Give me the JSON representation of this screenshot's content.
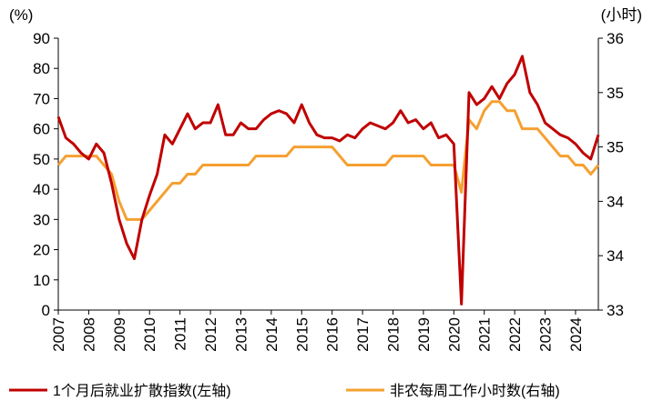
{
  "chart_data": {
    "type": "line",
    "y_unit": "(%)",
    "y2_unit": "(小时)",
    "x": [
      2007,
      2007.25,
      2007.5,
      2007.75,
      2008,
      2008.25,
      2008.5,
      2008.75,
      2009,
      2009.25,
      2009.5,
      2009.75,
      2010,
      2010.25,
      2010.5,
      2010.75,
      2011,
      2011.25,
      2011.5,
      2011.75,
      2012,
      2012.25,
      2012.5,
      2012.75,
      2013,
      2013.25,
      2013.5,
      2013.75,
      2014,
      2014.25,
      2014.5,
      2014.75,
      2015,
      2015.25,
      2015.5,
      2015.75,
      2016,
      2016.25,
      2016.5,
      2016.75,
      2017,
      2017.25,
      2017.5,
      2017.75,
      2018,
      2018.25,
      2018.5,
      2018.75,
      2019,
      2019.25,
      2019.5,
      2019.75,
      2020,
      2020.25,
      2020.5,
      2020.75,
      2021,
      2021.25,
      2021.5,
      2021.75,
      2022,
      2022.25,
      2022.5,
      2022.75,
      2023,
      2023.25,
      2023.5,
      2023.75,
      2024,
      2024.25,
      2024.5,
      2024.75
    ],
    "series": [
      {
        "name": "1个月后就业扩散指数(左轴)",
        "color": "#c00000",
        "axis": "y",
        "values": [
          64,
          57,
          55,
          52,
          50,
          55,
          52,
          42,
          30,
          22,
          17,
          30,
          38,
          45,
          58,
          55,
          60,
          65,
          60,
          62,
          62,
          68,
          58,
          58,
          62,
          60,
          60,
          63,
          65,
          66,
          65,
          62,
          68,
          62,
          58,
          57,
          57,
          56,
          58,
          57,
          60,
          62,
          61,
          60,
          62,
          66,
          62,
          63,
          60,
          62,
          57,
          58,
          55,
          2,
          72,
          68,
          70,
          74,
          70,
          75,
          78,
          84,
          72,
          68,
          62,
          60,
          58,
          57,
          55,
          52,
          50,
          58
        ]
      },
      {
        "name": "非农每周工作小时数(右轴)",
        "color": "#f5a030",
        "axis": "y2",
        "values": [
          34.6,
          34.7,
          34.7,
          34.7,
          34.7,
          34.7,
          34.6,
          34.5,
          34.2,
          34.0,
          34.0,
          34.0,
          34.1,
          34.2,
          34.3,
          34.4,
          34.4,
          34.5,
          34.5,
          34.6,
          34.6,
          34.6,
          34.6,
          34.6,
          34.6,
          34.6,
          34.7,
          34.7,
          34.7,
          34.7,
          34.7,
          34.8,
          34.8,
          34.8,
          34.8,
          34.8,
          34.8,
          34.7,
          34.6,
          34.6,
          34.6,
          34.6,
          34.6,
          34.6,
          34.7,
          34.7,
          34.7,
          34.7,
          34.7,
          34.6,
          34.6,
          34.6,
          34.6,
          34.3,
          35.1,
          35.0,
          35.2,
          35.3,
          35.3,
          35.2,
          35.2,
          35.0,
          35.0,
          35.0,
          34.9,
          34.8,
          34.7,
          34.7,
          34.6,
          34.6,
          34.5,
          34.6
        ]
      }
    ],
    "xlim": [
      2007,
      2024.75
    ],
    "xticks": [
      2007,
      2008,
      2009,
      2010,
      2011,
      2012,
      2013,
      2014,
      2015,
      2016,
      2017,
      2018,
      2019,
      2020,
      2021,
      2022,
      2023,
      2024
    ],
    "ylim": [
      0,
      90
    ],
    "yticks": [
      0,
      10,
      20,
      30,
      40,
      50,
      60,
      70,
      80,
      90
    ],
    "y2lim": [
      33,
      36
    ],
    "y2ticks": [
      {
        "value": 33,
        "label": "33"
      },
      {
        "value": 33.6,
        "label": "34"
      },
      {
        "value": 34.2,
        "label": "34"
      },
      {
        "value": 34.8,
        "label": "35"
      },
      {
        "value": 35.4,
        "label": "35"
      },
      {
        "value": 36,
        "label": "36"
      }
    ]
  }
}
